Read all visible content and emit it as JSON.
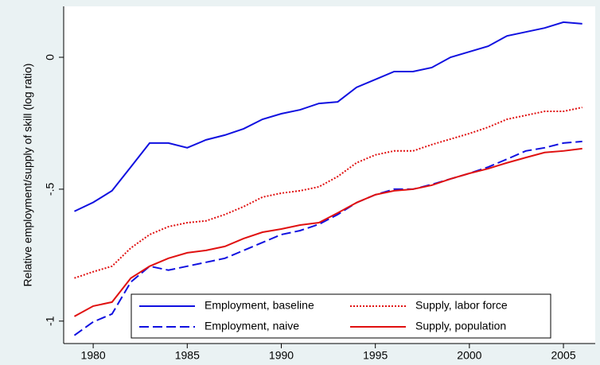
{
  "chart_data": {
    "type": "line",
    "y_label": "Relative employment/supply of skill (log ratio)",
    "x": [
      1979,
      1980,
      1981,
      1982,
      1983,
      1984,
      1985,
      1986,
      1987,
      1988,
      1989,
      1990,
      1991,
      1992,
      1993,
      1994,
      1995,
      1996,
      1997,
      1998,
      1999,
      2000,
      2001,
      2002,
      2003,
      2004,
      2005,
      2006
    ],
    "series": [
      {
        "name": "Employment, baseline",
        "color": "#1010e0",
        "style": "solid",
        "values": [
          -0.584,
          -0.55,
          -0.506,
          -0.416,
          -0.325,
          -0.325,
          -0.343,
          -0.313,
          -0.295,
          -0.271,
          -0.235,
          -0.214,
          -0.199,
          -0.175,
          -0.169,
          -0.114,
          -0.084,
          -0.054,
          -0.054,
          -0.039,
          0,
          0.021,
          0.042,
          0.081,
          0.096,
          0.111,
          0.133,
          0.127
        ]
      },
      {
        "name": "Supply, labor force",
        "color": "#e01010",
        "style": "dotted",
        "values": [
          -0.837,
          -0.813,
          -0.792,
          -0.723,
          -0.672,
          -0.642,
          -0.627,
          -0.62,
          -0.596,
          -0.566,
          -0.53,
          -0.515,
          -0.506,
          -0.491,
          -0.452,
          -0.4,
          -0.37,
          -0.355,
          -0.355,
          -0.331,
          -0.31,
          -0.289,
          -0.265,
          -0.235,
          -0.22,
          -0.205,
          -0.205,
          -0.19
        ]
      },
      {
        "name": "Employment, naive",
        "color": "#1010e0",
        "style": "dashed",
        "values": [
          -1.054,
          -1.003,
          -0.973,
          -0.852,
          -0.792,
          -0.807,
          -0.792,
          -0.777,
          -0.762,
          -0.732,
          -0.702,
          -0.672,
          -0.657,
          -0.633,
          -0.596,
          -0.551,
          -0.521,
          -0.5,
          -0.5,
          -0.482,
          -0.461,
          -0.44,
          -0.416,
          -0.386,
          -0.355,
          -0.343,
          -0.325,
          -0.319
        ]
      },
      {
        "name": "Supply, population",
        "color": "#e01010",
        "style": "solid",
        "values": [
          -0.982,
          -0.943,
          -0.928,
          -0.837,
          -0.792,
          -0.762,
          -0.741,
          -0.732,
          -0.717,
          -0.687,
          -0.663,
          -0.651,
          -0.636,
          -0.627,
          -0.59,
          -0.551,
          -0.521,
          -0.506,
          -0.5,
          -0.485,
          -0.461,
          -0.44,
          -0.422,
          -0.4,
          -0.38,
          -0.361,
          -0.355,
          -0.346
        ]
      }
    ],
    "xlim": [
      1978.43,
      2006.69
    ],
    "xticks": [
      1980,
      1985,
      1990,
      1995,
      2000,
      2005
    ],
    "ylim": [
      -1.085,
      0.193
    ],
    "yticks": [
      0,
      {
        "value": -0.5,
        "label": "-.5"
      },
      -1
    ],
    "grid": false,
    "legend": "bottom"
  }
}
